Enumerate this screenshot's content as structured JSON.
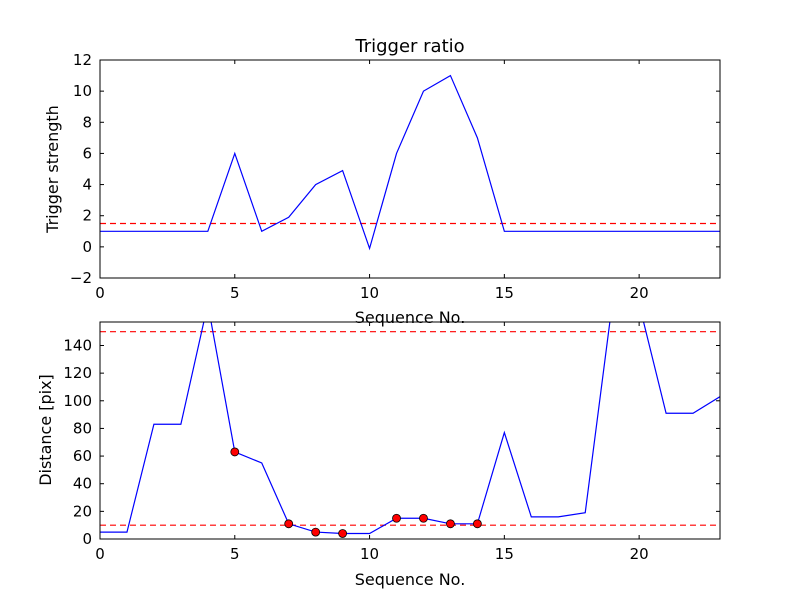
{
  "chart_data": [
    {
      "type": "line",
      "title": "Trigger ratio",
      "xlabel": "Sequence No.",
      "ylabel": "Trigger strength",
      "xlim": [
        0,
        23
      ],
      "ylim": [
        -2,
        12
      ],
      "xticks": [
        0,
        5,
        10,
        15,
        20
      ],
      "yticks": [
        -2,
        0,
        2,
        4,
        6,
        8,
        10,
        12
      ],
      "series": [
        {
          "color": "#0000ff",
          "x": [
            0,
            1,
            2,
            3,
            4,
            5,
            6,
            7,
            8,
            9,
            10,
            11,
            12,
            13,
            14,
            15,
            16,
            17,
            18,
            19,
            20,
            21,
            22,
            23
          ],
          "y": [
            1,
            1,
            1,
            1,
            1,
            6,
            1,
            1.9,
            4,
            4.9,
            -0.1,
            6,
            10,
            11,
            7,
            1,
            1,
            1,
            1,
            1,
            1,
            1,
            1,
            1
          ]
        }
      ],
      "hlines": [
        {
          "y": 1.5,
          "color": "#ff0000",
          "style": "dashed"
        }
      ]
    },
    {
      "type": "line",
      "xlabel": "Sequence No.",
      "ylabel": "Distance [pix]",
      "xlim": [
        0,
        23
      ],
      "ylim": [
        0,
        157
      ],
      "xticks": [
        0,
        5,
        10,
        15,
        20
      ],
      "yticks": [
        0,
        20,
        40,
        60,
        80,
        100,
        120,
        140
      ],
      "series": [
        {
          "color": "#0000ff",
          "x": [
            0,
            1,
            2,
            3,
            4,
            5,
            6,
            7,
            8,
            9,
            10,
            11,
            12,
            13,
            14,
            15,
            16,
            17,
            18,
            19,
            20,
            21,
            22,
            23
          ],
          "y": [
            5,
            5,
            83,
            83,
            170,
            63,
            55,
            11,
            5,
            4,
            4,
            15,
            15,
            11,
            11,
            77,
            16,
            16,
            19,
            170,
            170,
            91,
            91,
            103
          ]
        }
      ],
      "points": {
        "color": "#ff0000",
        "x": [
          5,
          7,
          8,
          9,
          11,
          12,
          13,
          14
        ],
        "y": [
          63,
          11,
          5,
          4,
          15,
          15,
          11,
          11
        ]
      },
      "hlines": [
        {
          "y": 10,
          "color": "#ff0000",
          "style": "dashed"
        },
        {
          "y": 150,
          "color": "#ff0000",
          "style": "dashed"
        }
      ]
    }
  ]
}
